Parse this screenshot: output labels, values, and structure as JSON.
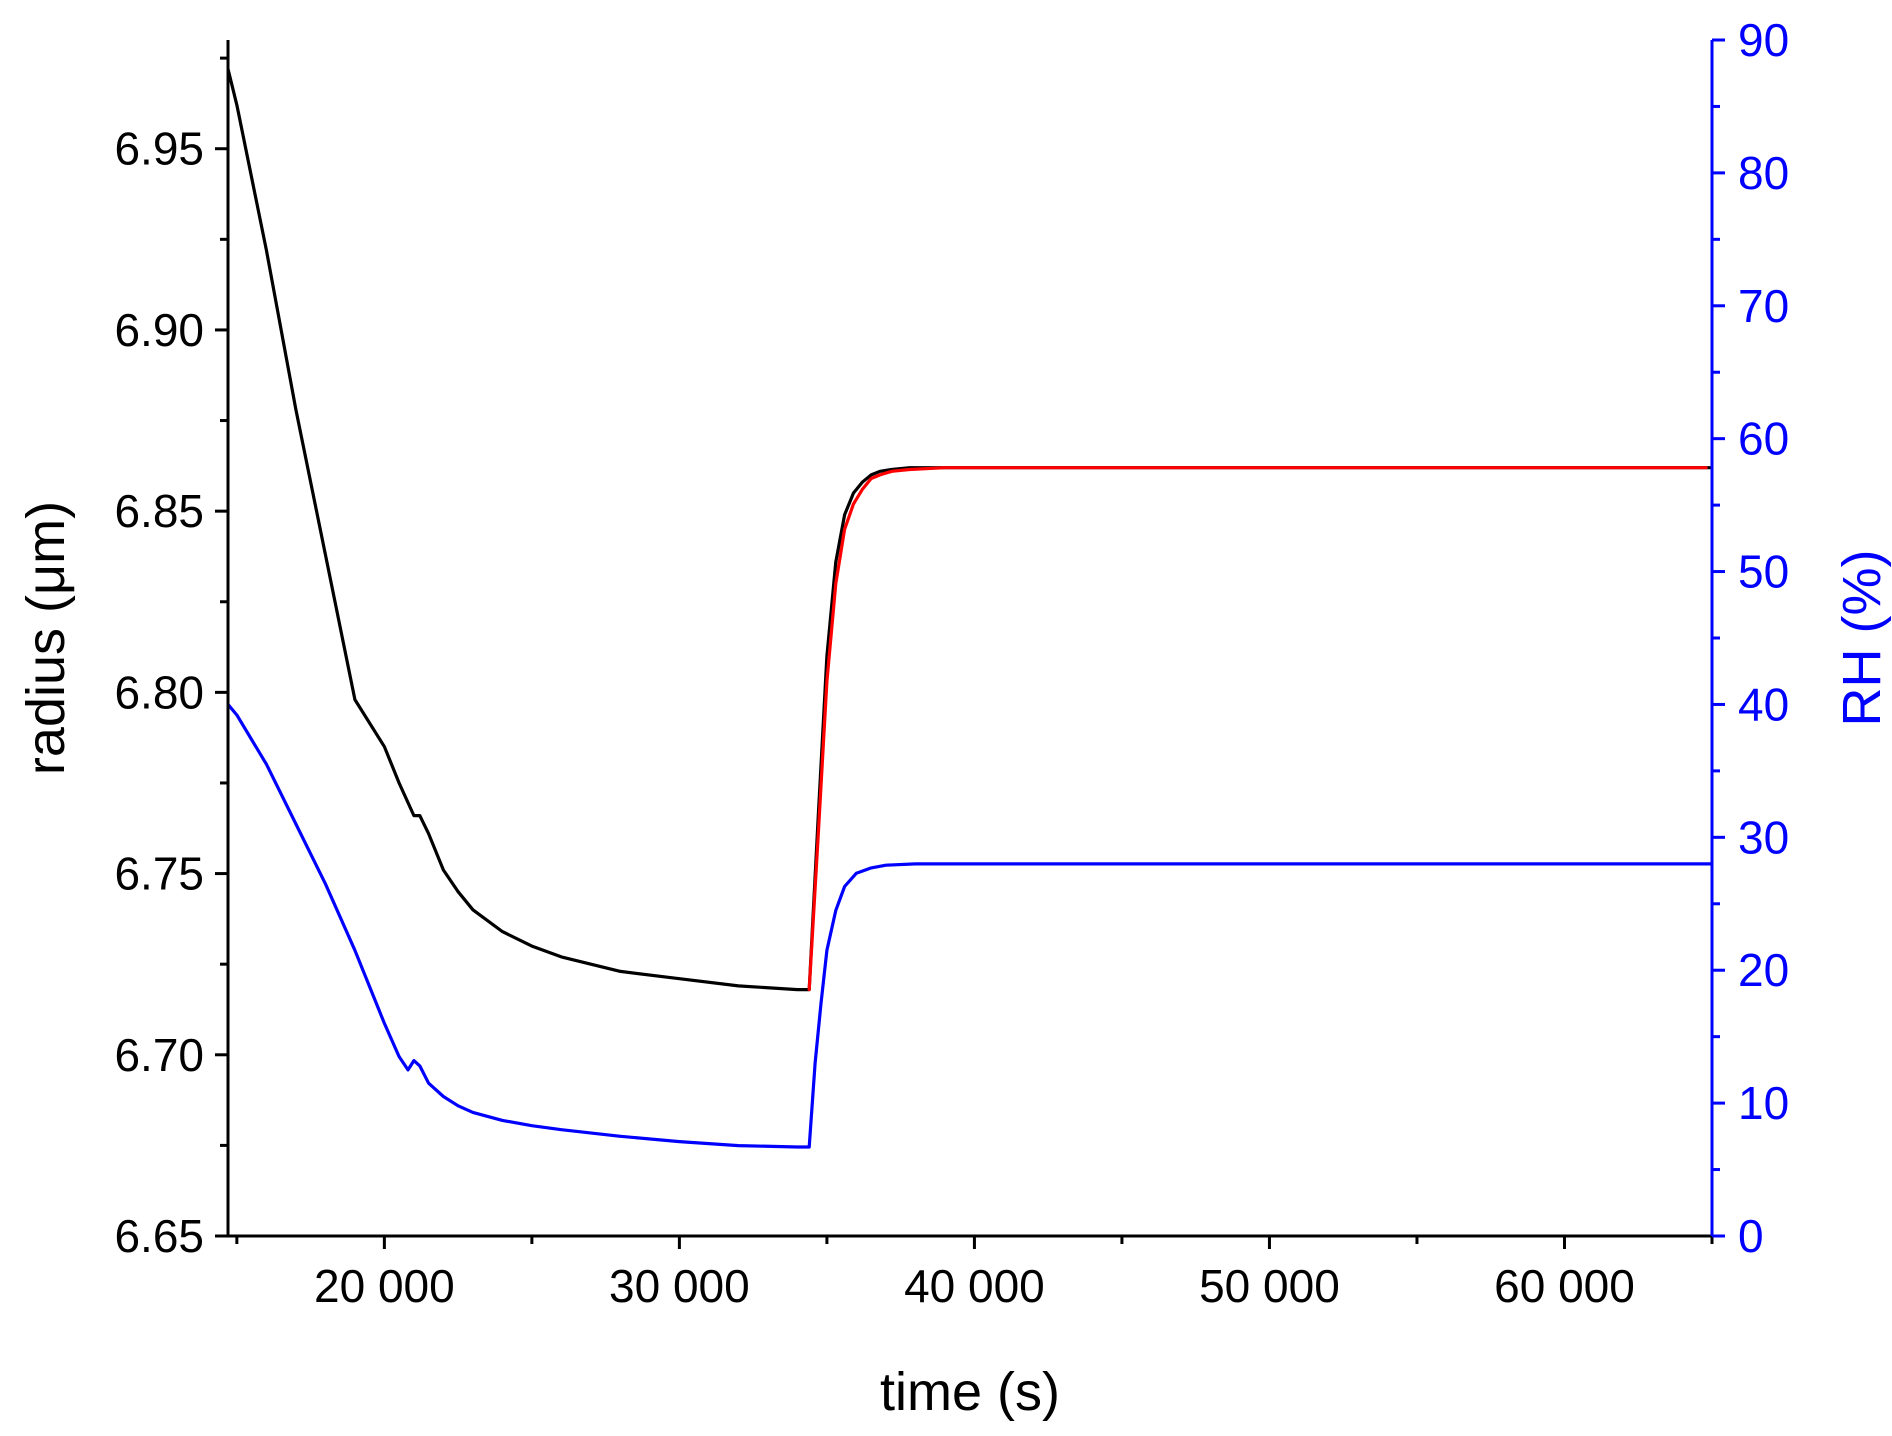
{
  "chart_data": {
    "type": "line",
    "xlabel": "time (s)",
    "ylabel_left": "radius (μm)",
    "ylabel_right": "RH (%)",
    "xlim": [
      14700,
      65000
    ],
    "ylim_left": [
      6.65,
      6.98
    ],
    "ylim_right": [
      0,
      90
    ],
    "x_ticks": [
      20000,
      30000,
      40000,
      50000,
      60000
    ],
    "x_tick_labels": [
      "20 000",
      "30 000",
      "40 000",
      "50 000",
      "60 000"
    ],
    "y_left_ticks": [
      6.65,
      6.7,
      6.75,
      6.8,
      6.85,
      6.9,
      6.95
    ],
    "y_left_tick_labels": [
      "6.65",
      "6.70",
      "6.75",
      "6.80",
      "6.85",
      "6.90",
      "6.95"
    ],
    "y_right_ticks": [
      0,
      10,
      20,
      30,
      40,
      50,
      60,
      70,
      80,
      90
    ],
    "y_right_tick_labels": [
      "0",
      "10",
      "20",
      "30",
      "40",
      "50",
      "60",
      "70",
      "80",
      "90"
    ],
    "grid": false,
    "right_axis_color": "#0000ff",
    "series": [
      {
        "axis": "left",
        "color": "#000000",
        "x": [
          14700,
          15000,
          16000,
          17000,
          18000,
          19000,
          20000,
          20500,
          21000,
          21200,
          21500,
          22000,
          22500,
          23000,
          24000,
          25000,
          26000,
          28000,
          30000,
          32000,
          34000,
          34400,
          34700,
          35000,
          35300,
          35600,
          35900,
          36200,
          36500,
          36800,
          37200,
          37800,
          39000,
          45000,
          55000,
          65000
        ],
        "y": [
          6.972,
          6.962,
          6.922,
          6.878,
          6.838,
          6.798,
          6.785,
          6.775,
          6.766,
          6.766,
          6.761,
          6.751,
          6.745,
          6.74,
          6.734,
          6.73,
          6.727,
          6.723,
          6.721,
          6.719,
          6.718,
          6.718,
          6.765,
          6.81,
          6.836,
          6.849,
          6.855,
          6.858,
          6.86,
          6.861,
          6.8615,
          6.862,
          6.862,
          6.862,
          6.862,
          6.862
        ]
      },
      {
        "axis": "left",
        "color": "#ff0000",
        "x": [
          34400,
          34700,
          35000,
          35300,
          35600,
          35900,
          36200,
          36500,
          36800,
          37200,
          37800,
          39000,
          45000,
          55000,
          64800
        ],
        "y": [
          6.718,
          6.76,
          6.803,
          6.83,
          6.845,
          6.852,
          6.856,
          6.859,
          6.86,
          6.861,
          6.8615,
          6.862,
          6.862,
          6.862,
          6.862
        ]
      },
      {
        "axis": "right",
        "color": "#0000ff",
        "x": [
          14700,
          15000,
          16000,
          17000,
          18000,
          19000,
          20000,
          20500,
          20800,
          21000,
          21200,
          21500,
          22000,
          22500,
          23000,
          24000,
          25000,
          26000,
          28000,
          30000,
          32000,
          34000,
          34400,
          34600,
          34800,
          35000,
          35300,
          35600,
          36000,
          36500,
          37000,
          38000,
          40000,
          50000,
          65000
        ],
        "y": [
          40,
          39.2,
          35.5,
          31,
          26.5,
          21.5,
          16,
          13.5,
          12.5,
          13.2,
          12.8,
          11.5,
          10.5,
          9.8,
          9.3,
          8.7,
          8.3,
          8,
          7.5,
          7.1,
          6.8,
          6.7,
          6.7,
          13,
          17.5,
          21.5,
          24.5,
          26.3,
          27.3,
          27.7,
          27.9,
          28,
          28,
          28,
          28
        ]
      }
    ]
  }
}
